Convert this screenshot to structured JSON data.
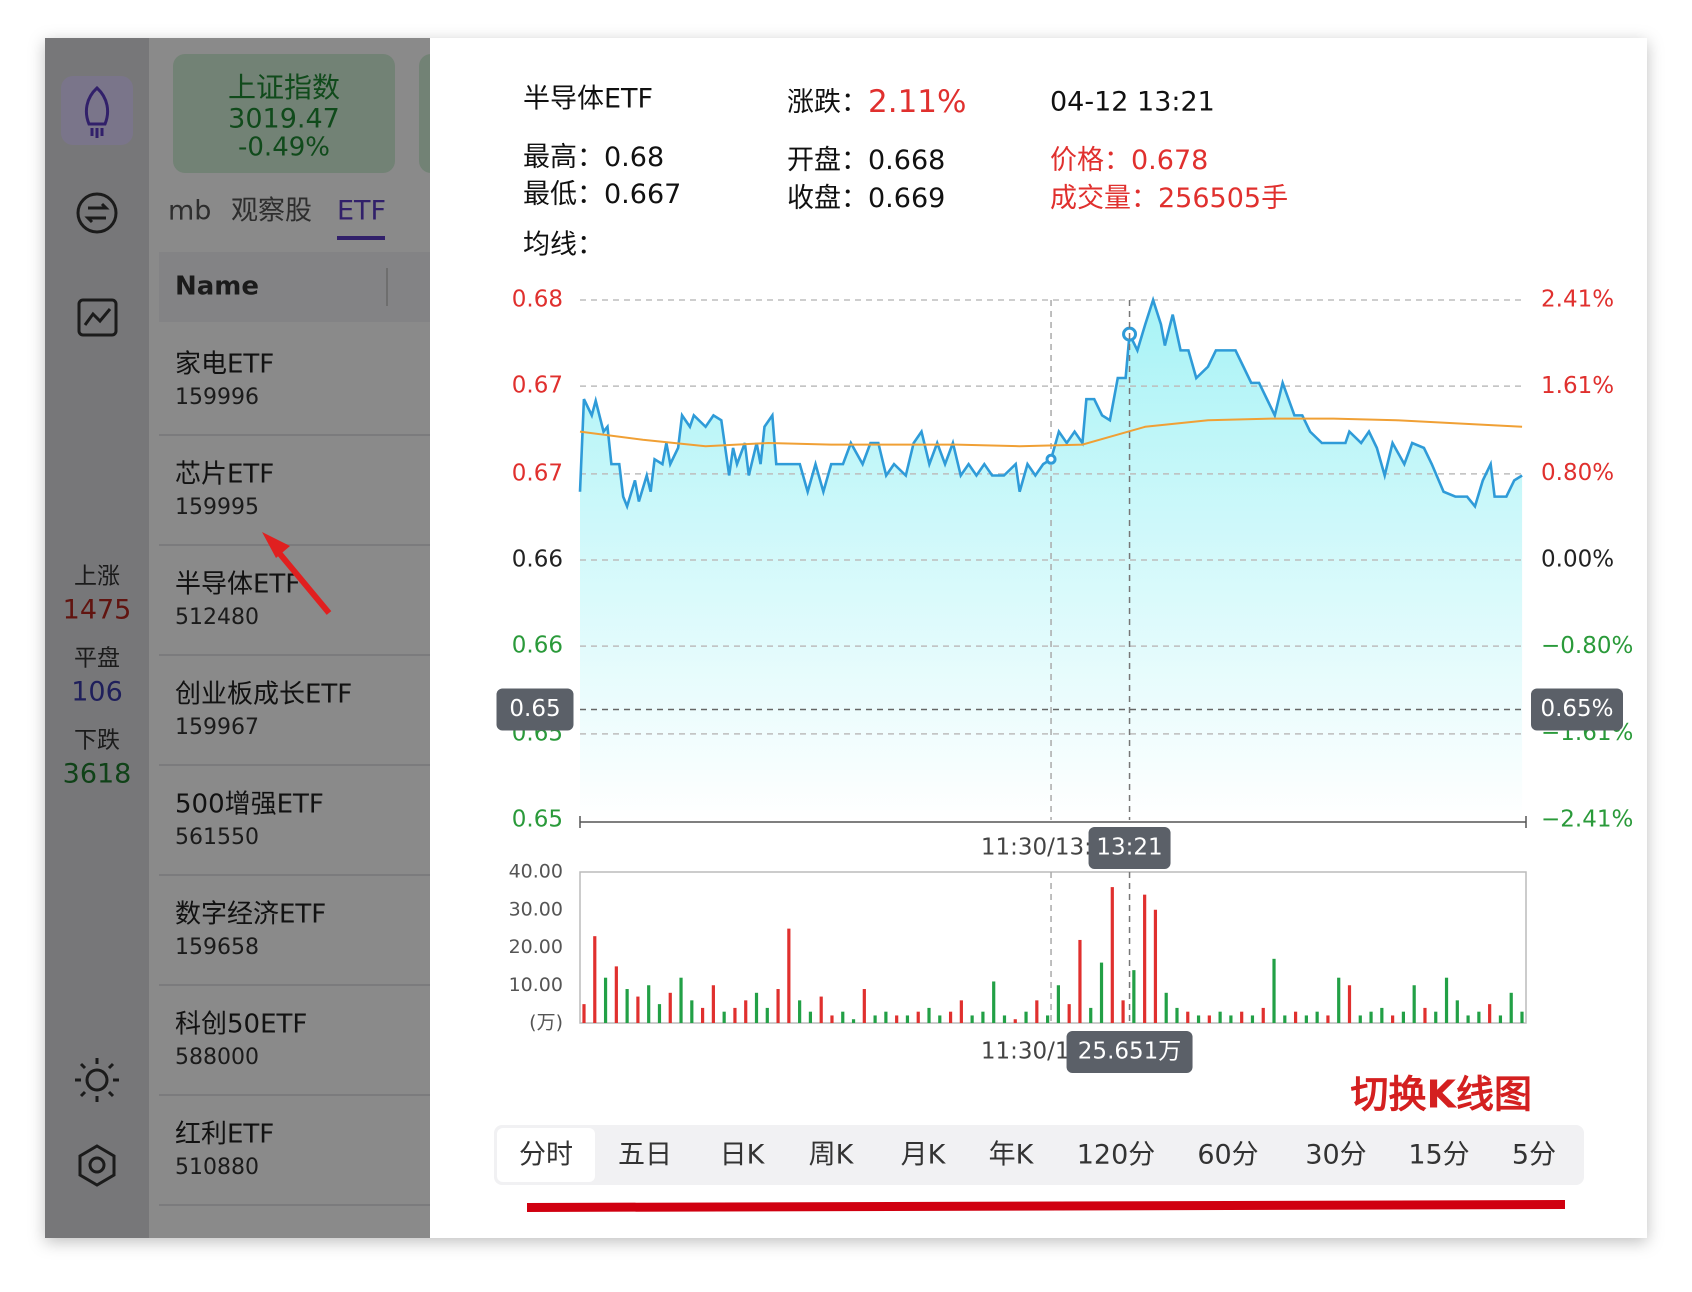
{
  "sidebar": {
    "stats": [
      {
        "label": "上涨",
        "value": "1475"
      },
      {
        "label": "平盘",
        "value": "106"
      },
      {
        "label": "下跌",
        "value": "3618"
      }
    ]
  },
  "index_card": {
    "name": "上证指数",
    "price": "3019.47",
    "change": "-0.49%"
  },
  "tabs": [
    "mb",
    "观察股",
    "ETF"
  ],
  "list": {
    "header": "Name",
    "rows": [
      {
        "name": "家电ETF",
        "code": "159996"
      },
      {
        "name": "芯片ETF",
        "code": "159995"
      },
      {
        "name": "半导体ETF",
        "code": "512480"
      },
      {
        "name": "创业板成长ETF",
        "code": "159967"
      },
      {
        "name": "500增强ETF",
        "code": "561550"
      },
      {
        "name": "数字经济ETF",
        "code": "159658"
      },
      {
        "name": "科创50ETF",
        "code": "588000"
      },
      {
        "name": "红利ETF",
        "code": "510880"
      }
    ]
  },
  "detail": {
    "title": "半导体ETF",
    "change_label": "涨跌：",
    "change": "2.11%",
    "time": "04-12 13:21",
    "high_label": "最高：",
    "high": "0.68",
    "low_label": "最低：",
    "low": "0.667",
    "open_label": "开盘：",
    "open": "0.668",
    "close_label": "收盘：",
    "close": "0.669",
    "price_label": "价格：",
    "price": "0.678",
    "volume_label": "成交量：",
    "volume": "256505手",
    "ma_label": "均线："
  },
  "chart_data": [
    {
      "type": "line",
      "xlim": [
        0,
        241
      ],
      "xticks": [
        {
          "value": 120,
          "label": "11:30/13:00"
        }
      ],
      "ylim": [
        0.648,
        0.68
      ],
      "yticks": [
        {
          "value": 0.68,
          "label": "0.68"
        },
        {
          "value": 0.6747,
          "label": "0.67"
        },
        {
          "value": 0.6693,
          "label": "0.67"
        },
        {
          "value": 0.664,
          "label": "0.66"
        },
        {
          "value": 0.6587,
          "label": "0.66"
        },
        {
          "value": 0.6533,
          "label": "0.65"
        },
        {
          "value": 0.648,
          "label": "0.65"
        }
      ],
      "y2lim": [
        -2.41,
        2.41
      ],
      "y2ticks": [
        {
          "value": 2.41,
          "label": "2.41%"
        },
        {
          "value": 1.61,
          "label": "1.61%"
        },
        {
          "value": 0.8,
          "label": "0.80%"
        },
        {
          "value": 0,
          "label": "0.00%"
        },
        {
          "value": -0.8,
          "label": "−0.80%"
        },
        {
          "value": -1.61,
          "label": "−1.61%"
        },
        {
          "value": -2.41,
          "label": "−2.41%"
        }
      ],
      "grid": true,
      "up_color": "#e0302e",
      "down_color": "#2a9a3a",
      "fill": "#a8f3f6",
      "series": [
        {
          "color": "#2f9bd8",
          "x": [
            0,
            1,
            3,
            4,
            6,
            7,
            8,
            10,
            11,
            12,
            14,
            15,
            17,
            18,
            19,
            21,
            22,
            23,
            25,
            26,
            28,
            29,
            32,
            34,
            36,
            38,
            39,
            40,
            42,
            43,
            45,
            46,
            47,
            49,
            50,
            53,
            56,
            58,
            60,
            62,
            64,
            67,
            69,
            72,
            74,
            76,
            78,
            80,
            83,
            85,
            87,
            89,
            91,
            93,
            95,
            97,
            99,
            101,
            103,
            105,
            108,
            111,
            112,
            114,
            116,
            118,
            120,
            122,
            124,
            126,
            128,
            129,
            131,
            133,
            135,
            137,
            139,
            140,
            142,
            144,
            146,
            148,
            149,
            151,
            153,
            155,
            157,
            160,
            162,
            164,
            167,
            169,
            171,
            173,
            175,
            177,
            179,
            182,
            184,
            186,
            189,
            192,
            195,
            196,
            199,
            201,
            203,
            205,
            207,
            210,
            212,
            215,
            217,
            220,
            223,
            226,
            228,
            230,
            232,
            233,
            236,
            238,
            240
          ],
          "values": [
            0.6682,
            0.6739,
            0.6729,
            0.6738,
            0.6719,
            0.6722,
            0.6699,
            0.6699,
            0.6679,
            0.6673,
            0.6689,
            0.6676,
            0.6692,
            0.6682,
            0.6702,
            0.6699,
            0.6712,
            0.6699,
            0.6709,
            0.6729,
            0.6722,
            0.6729,
            0.6722,
            0.6729,
            0.6726,
            0.6692,
            0.6709,
            0.6699,
            0.6712,
            0.6692,
            0.6712,
            0.6699,
            0.6722,
            0.6729,
            0.6699,
            0.6699,
            0.6699,
            0.6682,
            0.6699,
            0.6682,
            0.6699,
            0.6699,
            0.6712,
            0.6699,
            0.6712,
            0.6712,
            0.6692,
            0.6699,
            0.6692,
            0.6712,
            0.6719,
            0.6699,
            0.6712,
            0.6699,
            0.6712,
            0.6692,
            0.6699,
            0.6692,
            0.6699,
            0.6692,
            0.6692,
            0.6699,
            0.6682,
            0.6699,
            0.6692,
            0.6699,
            0.6702,
            0.6719,
            0.6712,
            0.6719,
            0.6712,
            0.6739,
            0.6739,
            0.6729,
            0.6726,
            0.6752,
            0.6752,
            0.6779,
            0.6769,
            0.6785,
            0.68,
            0.6785,
            0.6772,
            0.6791,
            0.6769,
            0.6769,
            0.6752,
            0.6759,
            0.6769,
            0.6769,
            0.6769,
            0.6759,
            0.6749,
            0.6749,
            0.6739,
            0.6729,
            0.6749,
            0.6729,
            0.6729,
            0.6719,
            0.6712,
            0.6712,
            0.6712,
            0.6719,
            0.6712,
            0.6719,
            0.6709,
            0.6692,
            0.6712,
            0.6699,
            0.6712,
            0.6709,
            0.6699,
            0.6682,
            0.6679,
            0.6679,
            0.6673,
            0.6689,
            0.6699,
            0.6679,
            0.6679,
            0.6689,
            0.6692
          ]
        },
        {
          "color": "#f0a035",
          "x": [
            0,
            16,
            32,
            48,
            64,
            80,
            96,
            112,
            128,
            144,
            160,
            176,
            192,
            208,
            224,
            240
          ],
          "values": [
            0.6719,
            0.6714,
            0.671,
            0.6712,
            0.6711,
            0.6711,
            0.6711,
            0.671,
            0.6711,
            0.6722,
            0.6726,
            0.6727,
            0.6727,
            0.6726,
            0.6724,
            0.6722
          ]
        }
      ],
      "crosshair": {
        "x": 140,
        "y": 0.6548,
        "y_label": "0.65",
        "y2_label": "0.65%",
        "x_label": "13:21"
      },
      "markers": [
        66,
        77
      ]
    },
    {
      "type": "bar",
      "xlim": [
        0,
        241
      ],
      "xticks": [
        {
          "value": 120,
          "label": "11:30/13:00"
        }
      ],
      "ylim": [
        0,
        40
      ],
      "yticks": [
        {
          "value": 40,
          "label": "40.00"
        },
        {
          "value": 30,
          "label": "30.00"
        },
        {
          "value": 20,
          "label": "20.00"
        },
        {
          "value": 10,
          "label": "10.00"
        },
        {
          "value": 0,
          "label": "(万)"
        }
      ],
      "values": [
        5,
        23,
        12,
        15,
        9,
        7,
        10,
        5,
        8,
        12,
        6,
        4,
        10,
        3,
        4,
        6,
        8,
        4,
        9,
        25,
        6,
        3,
        7,
        2,
        3,
        1,
        9,
        2,
        3,
        2,
        2,
        3,
        4,
        2,
        3,
        6,
        2,
        3,
        11,
        2,
        1,
        3,
        6,
        2,
        10,
        5,
        22,
        4,
        16,
        36,
        6,
        14,
        34,
        30,
        8,
        4,
        3,
        2,
        2,
        3,
        2,
        3,
        2,
        4,
        17,
        2,
        3,
        2,
        3,
        2,
        12,
        10,
        2,
        3,
        4,
        2,
        3,
        10,
        4,
        3,
        12,
        6,
        2,
        3,
        5,
        2,
        8,
        3
      ],
      "colors": [
        "r",
        "r",
        "g",
        "r",
        "g",
        "r",
        "g",
        "g",
        "r",
        "g",
        "g",
        "r",
        "r",
        "g",
        "r",
        "r",
        "g",
        "g",
        "r",
        "r",
        "g",
        "g",
        "r",
        "r",
        "g",
        "g",
        "r",
        "g",
        "g",
        "r",
        "g",
        "r",
        "g",
        "g",
        "r",
        "r",
        "g",
        "g",
        "g",
        "g",
        "r",
        "g",
        "r",
        "g",
        "g",
        "r",
        "r",
        "g",
        "g",
        "r",
        "r",
        "g",
        "r",
        "r",
        "g",
        "g",
        "r",
        "g",
        "r",
        "g",
        "g",
        "r",
        "g",
        "r",
        "g",
        "g",
        "r",
        "g",
        "g",
        "r",
        "g",
        "r",
        "g",
        "g",
        "g",
        "r",
        "g",
        "g",
        "r",
        "g",
        "g",
        "g",
        "g",
        "g",
        "r",
        "g",
        "g",
        "g"
      ],
      "palette": {
        "r": "#e0302e",
        "g": "#22a046"
      },
      "crosshair": {
        "x": 140,
        "label": "25.651万"
      }
    }
  ],
  "annotation": "切换K线图",
  "period_tabs": [
    "分时",
    "五日",
    "日K",
    "周K",
    "月K",
    "年K",
    "120分",
    "60分",
    "30分",
    "15分",
    "5分"
  ]
}
